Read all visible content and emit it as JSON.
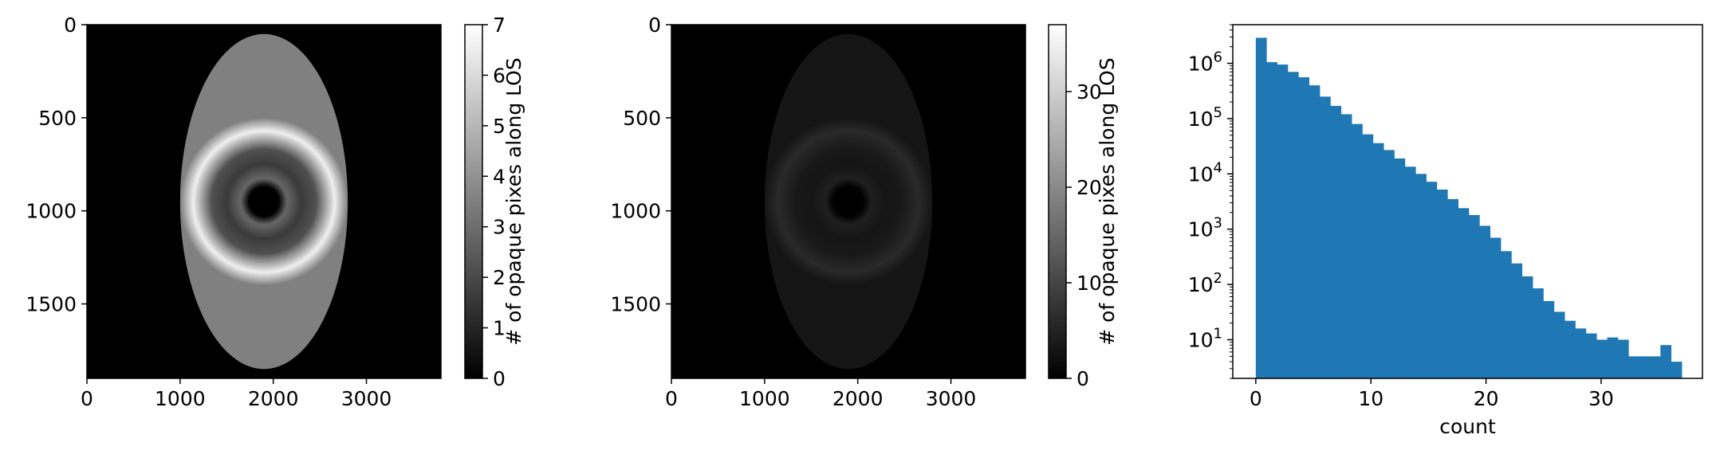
{
  "figure": {
    "background": "#ffffff",
    "text_color": "#000000"
  },
  "chart_data": [
    {
      "type": "heatmap",
      "title": "",
      "xlabel": "",
      "ylabel": "",
      "xlim": [
        0,
        3800
      ],
      "ylim": [
        1900,
        0
      ],
      "xticks": [
        0,
        1000,
        2000,
        3000
      ],
      "yticks": [
        0,
        500,
        1000,
        1500
      ],
      "colormap": "gray",
      "colorbar": {
        "label": "# of opaque pixes along LOS",
        "range": [
          0,
          7
        ],
        "ticks": [
          0,
          1,
          2,
          3,
          4,
          5,
          6,
          7
        ]
      },
      "image": {
        "description_free": true,
        "center": [
          1900,
          950
        ],
        "rings": [
          {
            "r": 160,
            "v": 0.05
          },
          {
            "r": 250,
            "v": 2.8
          },
          {
            "r": 400,
            "v": 1.6
          },
          {
            "r": 560,
            "v": 2.2
          },
          {
            "r": 760,
            "v": 6.6
          },
          {
            "r": 900,
            "v": 3.5
          }
        ]
      }
    },
    {
      "type": "heatmap",
      "title": "",
      "xlabel": "",
      "ylabel": "",
      "xlim": [
        0,
        3800
      ],
      "ylim": [
        1900,
        0
      ],
      "xticks": [
        0,
        1000,
        2000,
        3000
      ],
      "yticks": [
        0,
        500,
        1000,
        1500
      ],
      "colormap": "gray",
      "colorbar": {
        "label": "# of opaque pixes along LOS",
        "range": [
          0,
          37
        ],
        "ticks": [
          0,
          10,
          20,
          30
        ]
      },
      "image": {
        "center": [
          1900,
          950
        ],
        "rings": [
          {
            "r": 160,
            "v": 0.2
          },
          {
            "r": 250,
            "v": 4.5
          },
          {
            "r": 400,
            "v": 3.0
          },
          {
            "r": 560,
            "v": 3.5
          },
          {
            "r": 760,
            "v": 6.0
          },
          {
            "r": 900,
            "v": 3.0
          }
        ]
      }
    },
    {
      "type": "bar",
      "title": "",
      "xlabel": "count",
      "ylabel": "",
      "yscale": "log",
      "xlim": [
        -2,
        38.8
      ],
      "ylim": [
        2,
        5000000
      ],
      "xticks": [
        0,
        10,
        20,
        30
      ],
      "yticks": [
        10,
        100,
        1000,
        10000,
        100000,
        1000000
      ],
      "ytick_labels": [
        "10^1",
        "10^2",
        "10^3",
        "10^4",
        "10^5",
        "10^6"
      ],
      "color": "#1f77b4",
      "bin_edges": [
        0,
        0.925,
        1.85,
        2.775,
        3.7,
        4.625,
        5.55,
        6.475,
        7.4,
        8.325,
        9.25,
        10.175,
        11.1,
        12.025,
        12.95,
        13.875,
        14.8,
        15.725,
        16.65,
        17.575,
        18.5,
        19.425,
        20.35,
        21.275,
        22.2,
        23.125,
        24.05,
        24.975,
        25.9,
        26.825,
        27.75,
        28.675,
        29.6,
        30.525,
        31.45,
        32.375,
        33.3,
        34.225,
        35.15,
        36.075,
        37
      ],
      "values": [
        2900000,
        1050000,
        950000,
        700000,
        560000,
        400000,
        250000,
        170000,
        120000,
        80000,
        52000,
        36000,
        27000,
        19000,
        13500,
        10000,
        7200,
        5200,
        3500,
        2400,
        1800,
        1150,
        700,
        400,
        240,
        140,
        85,
        50,
        32,
        22,
        16,
        13,
        10,
        11,
        10,
        5,
        5,
        5,
        8,
        4
      ]
    }
  ]
}
